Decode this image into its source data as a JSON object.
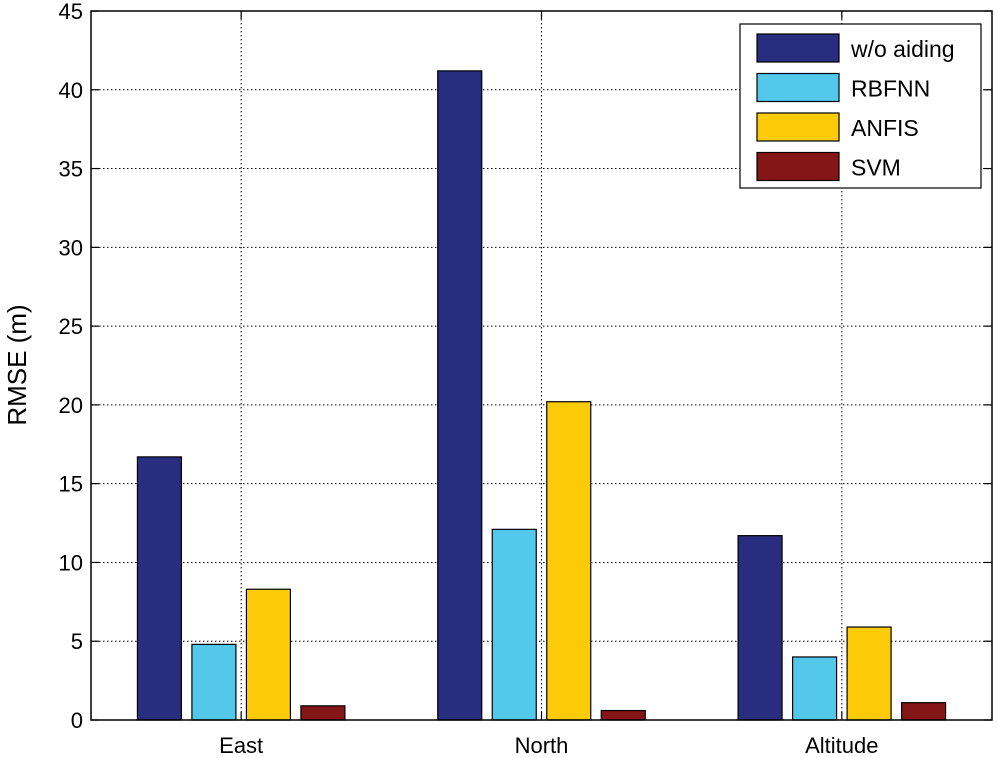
{
  "chart_data": {
    "type": "bar",
    "title": "",
    "xlabel": "",
    "ylabel": "RMSE (m)",
    "categories": [
      "East",
      "North",
      "Altitude"
    ],
    "series": [
      {
        "name": "w/o aiding",
        "color": "#282d7f",
        "values": [
          16.7,
          41.2,
          11.7
        ]
      },
      {
        "name": "RBFNN",
        "color": "#54c8eb",
        "values": [
          4.8,
          12.1,
          4.0
        ]
      },
      {
        "name": "ANFIS",
        "color": "#fdcb08",
        "values": [
          8.3,
          20.2,
          5.9
        ]
      },
      {
        "name": "SVM",
        "color": "#841617",
        "values": [
          0.9,
          0.6,
          1.1
        ]
      }
    ],
    "ylim": [
      0,
      45
    ],
    "yticks": [
      0,
      5,
      10,
      15,
      20,
      25,
      30,
      35,
      40,
      45
    ],
    "grid": true,
    "legend_position": "top-right"
  }
}
